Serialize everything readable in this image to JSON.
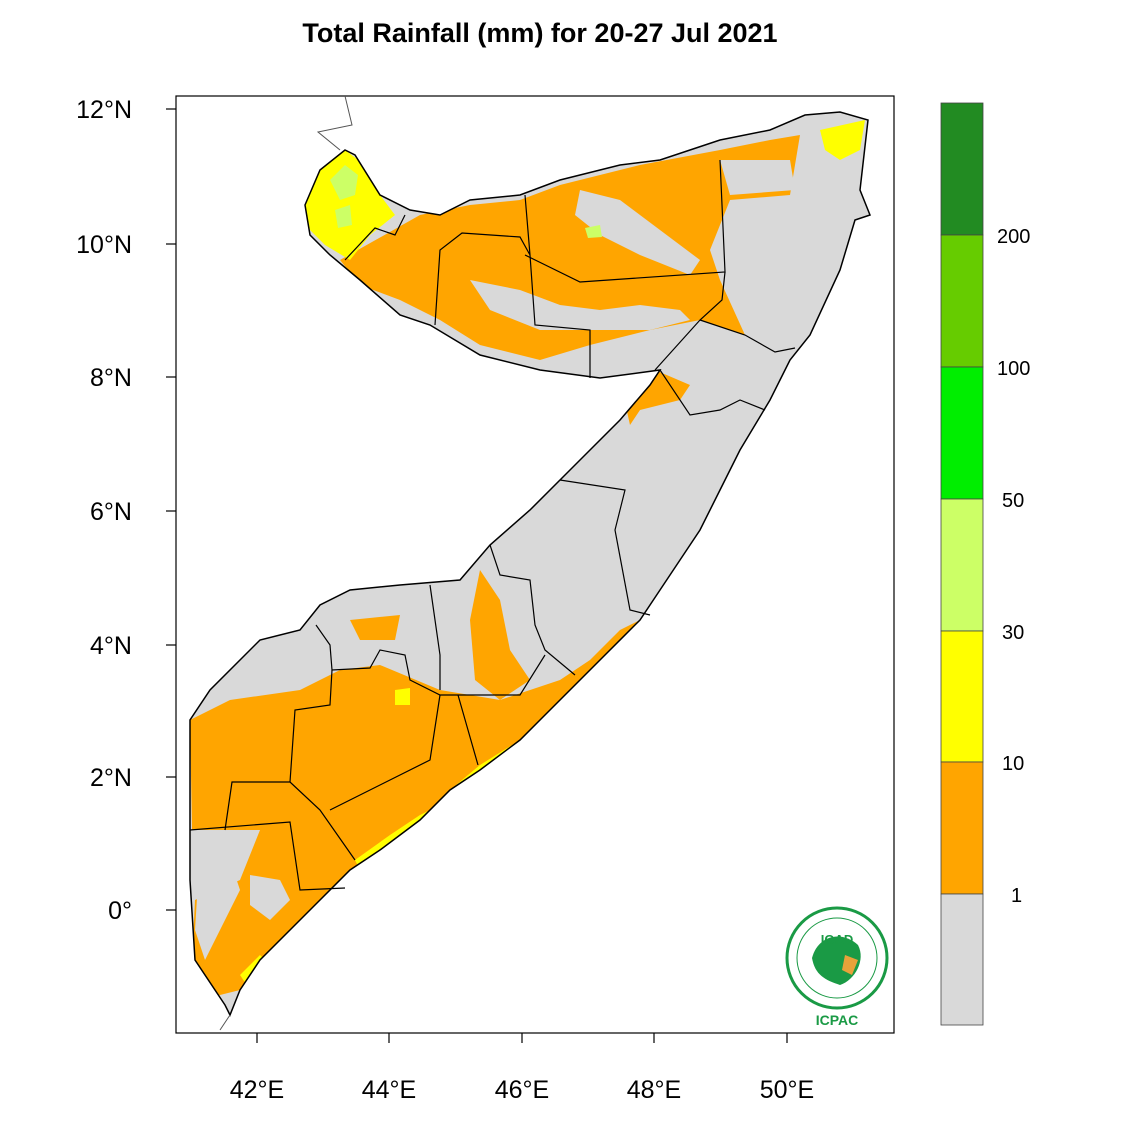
{
  "title": "Total Rainfall (mm) for 20-27 Jul 2021",
  "map": {
    "lat_ticks": [
      "12°N",
      "10°N",
      "8°N",
      "6°N",
      "4°N",
      "2°N",
      "0°"
    ],
    "lon_ticks": [
      "42°E",
      "44°E",
      "46°E",
      "48°E",
      "50°E"
    ],
    "extent": {
      "lon_min": 40.8,
      "lon_max": 51.6,
      "lat_min": -1.9,
      "lat_max": 12.2
    }
  },
  "colorbar": {
    "labels": [
      "1",
      "10",
      "30",
      "50",
      "100",
      "200"
    ],
    "bins": [
      {
        "range": "<1",
        "color": "#d9d9d9"
      },
      {
        "range": "1-10",
        "color": "#ffa500"
      },
      {
        "range": "10-30",
        "color": "#ffff00"
      },
      {
        "range": "30-50",
        "color": "#ccff66"
      },
      {
        "range": "50-100",
        "color": "#00ee00"
      },
      {
        "range": "100-200",
        "color": "#66cc00"
      },
      {
        "range": ">200",
        "color": "#228b22"
      }
    ]
  },
  "logo": {
    "top_text": "IGAD",
    "bottom_text": "ICPAC",
    "icon": "igad-icpac-logo"
  }
}
